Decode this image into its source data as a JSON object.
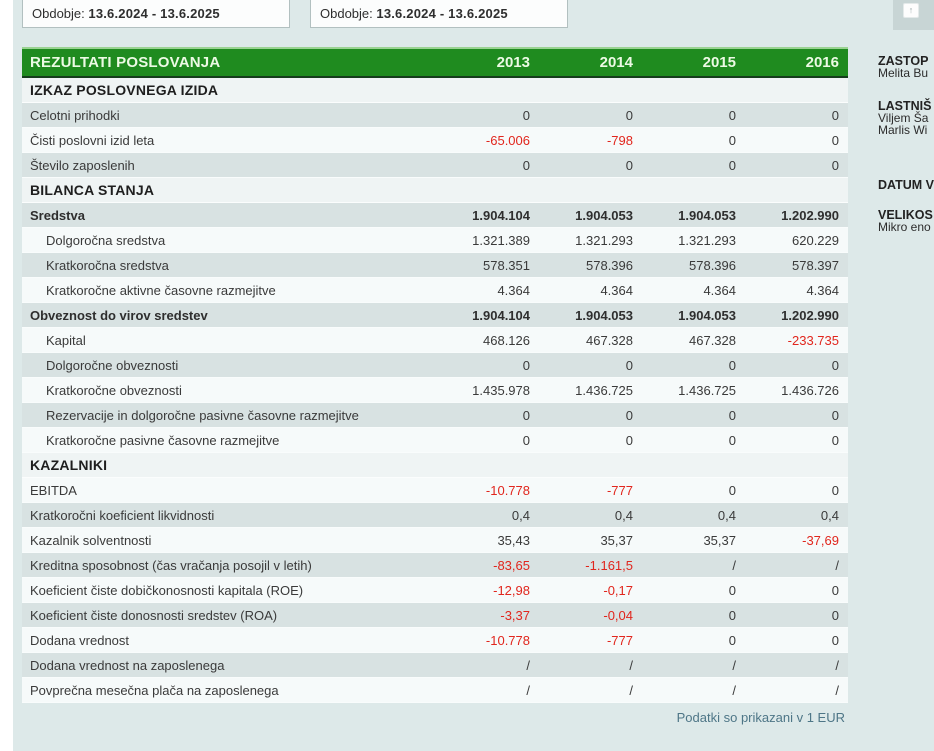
{
  "topbar": {
    "periods": [
      {
        "prefix": "Obdobje:",
        "range": "13.6.2024 - 13.6.2025"
      },
      {
        "prefix": "Obdobje:",
        "range": "13.6.2024 - 13.6.2025"
      }
    ]
  },
  "corner": {
    "icon": "↑"
  },
  "table": {
    "title": "REZULTATI POSLOVANJA",
    "years": [
      "2013",
      "2014",
      "2015",
      "2016"
    ],
    "footnote": "Podatki so prikazani v 1 EUR",
    "sections": [
      {
        "title": "IZKAZ POSLOVNEGA IZIDA",
        "rows": [
          {
            "label": "Celotni prihodki",
            "indent": false,
            "bold": false,
            "values": [
              "0",
              "0",
              "0",
              "0"
            ]
          },
          {
            "label": "Čisti poslovni izid leta",
            "indent": false,
            "bold": false,
            "values": [
              "-65.006",
              "-798",
              "0",
              "0"
            ]
          },
          {
            "label": "Število zaposlenih",
            "indent": false,
            "bold": false,
            "values": [
              "0",
              "0",
              "0",
              "0"
            ]
          }
        ]
      },
      {
        "title": "BILANCA STANJA",
        "rows": [
          {
            "label": "Sredstva",
            "indent": false,
            "bold": true,
            "values": [
              "1.904.104",
              "1.904.053",
              "1.904.053",
              "1.202.990"
            ]
          },
          {
            "label": "Dolgoročna sredstva",
            "indent": true,
            "bold": false,
            "values": [
              "1.321.389",
              "1.321.293",
              "1.321.293",
              "620.229"
            ]
          },
          {
            "label": "Kratkoročna sredstva",
            "indent": true,
            "bold": false,
            "values": [
              "578.351",
              "578.396",
              "578.396",
              "578.397"
            ]
          },
          {
            "label": "Kratkoročne aktivne časovne razmejitve",
            "indent": true,
            "bold": false,
            "values": [
              "4.364",
              "4.364",
              "4.364",
              "4.364"
            ]
          },
          {
            "label": "Obveznost do virov sredstev",
            "indent": false,
            "bold": true,
            "values": [
              "1.904.104",
              "1.904.053",
              "1.904.053",
              "1.202.990"
            ]
          },
          {
            "label": "Kapital",
            "indent": true,
            "bold": false,
            "values": [
              "468.126",
              "467.328",
              "467.328",
              "-233.735"
            ]
          },
          {
            "label": "Dolgoročne obveznosti",
            "indent": true,
            "bold": false,
            "values": [
              "0",
              "0",
              "0",
              "0"
            ]
          },
          {
            "label": "Kratkoročne obveznosti",
            "indent": true,
            "bold": false,
            "values": [
              "1.435.978",
              "1.436.725",
              "1.436.725",
              "1.436.726"
            ]
          },
          {
            "label": "Rezervacije in dolgoročne pasivne časovne razmejitve",
            "indent": true,
            "bold": false,
            "values": [
              "0",
              "0",
              "0",
              "0"
            ]
          },
          {
            "label": "Kratkoročne pasivne časovne razmejitve",
            "indent": true,
            "bold": false,
            "values": [
              "0",
              "0",
              "0",
              "0"
            ]
          }
        ]
      },
      {
        "title": "KAZALNIKI",
        "rows": [
          {
            "label": "EBITDA",
            "indent": false,
            "bold": false,
            "values": [
              "-10.778",
              "-777",
              "0",
              "0"
            ]
          },
          {
            "label": "Kratkoročni koeficient likvidnosti",
            "indent": false,
            "bold": false,
            "values": [
              "0,4",
              "0,4",
              "0,4",
              "0,4"
            ]
          },
          {
            "label": "Kazalnik solventnosti",
            "indent": false,
            "bold": false,
            "values": [
              "35,43",
              "35,37",
              "35,37",
              "-37,69"
            ]
          },
          {
            "label": "Kreditna sposobnost (čas vračanja posojil v letih)",
            "indent": false,
            "bold": false,
            "values": [
              "-83,65",
              "-1.161,5",
              "/",
              "/"
            ]
          },
          {
            "label": "Koeficient čiste dobičkonosnosti kapitala (ROE)",
            "indent": false,
            "bold": false,
            "values": [
              "-12,98",
              "-0,17",
              "0",
              "0"
            ]
          },
          {
            "label": "Koeficient čiste donosnosti sredstev (ROA)",
            "indent": false,
            "bold": false,
            "values": [
              "-3,37",
              "-0,04",
              "0",
              "0"
            ]
          },
          {
            "label": "Dodana vrednost",
            "indent": false,
            "bold": false,
            "values": [
              "-10.778",
              "-777",
              "0",
              "0"
            ]
          },
          {
            "label": "Dodana vrednost na zaposlenega",
            "indent": false,
            "bold": false,
            "values": [
              "/",
              "/",
              "/",
              "/"
            ]
          },
          {
            "label": "Povprečna mesečna plača na zaposlenega",
            "indent": false,
            "bold": false,
            "values": [
              "/",
              "/",
              "/",
              "/"
            ]
          }
        ]
      }
    ]
  },
  "sidebar": {
    "groups": [
      {
        "label": "ZASTOP",
        "lines": [
          "Melita Bu"
        ]
      },
      {
        "label": "LASTNIŠ",
        "lines": [
          "Viljem Ša",
          "Marlis Wi"
        ]
      },
      {
        "label": "DATUM V",
        "lines": []
      },
      {
        "label": "VELIKOS",
        "lines": [
          "Mikro eno"
        ]
      }
    ]
  },
  "colors": {
    "header_green": "#1f8b1f",
    "header_green_border_dark": "#153d1c",
    "negative_red": "#e1261d",
    "row_alt": "#d8e2e2",
    "row_plain": "#f6fafa",
    "page_bg": "#dde9e9",
    "footnote_text": "#4e7687"
  }
}
